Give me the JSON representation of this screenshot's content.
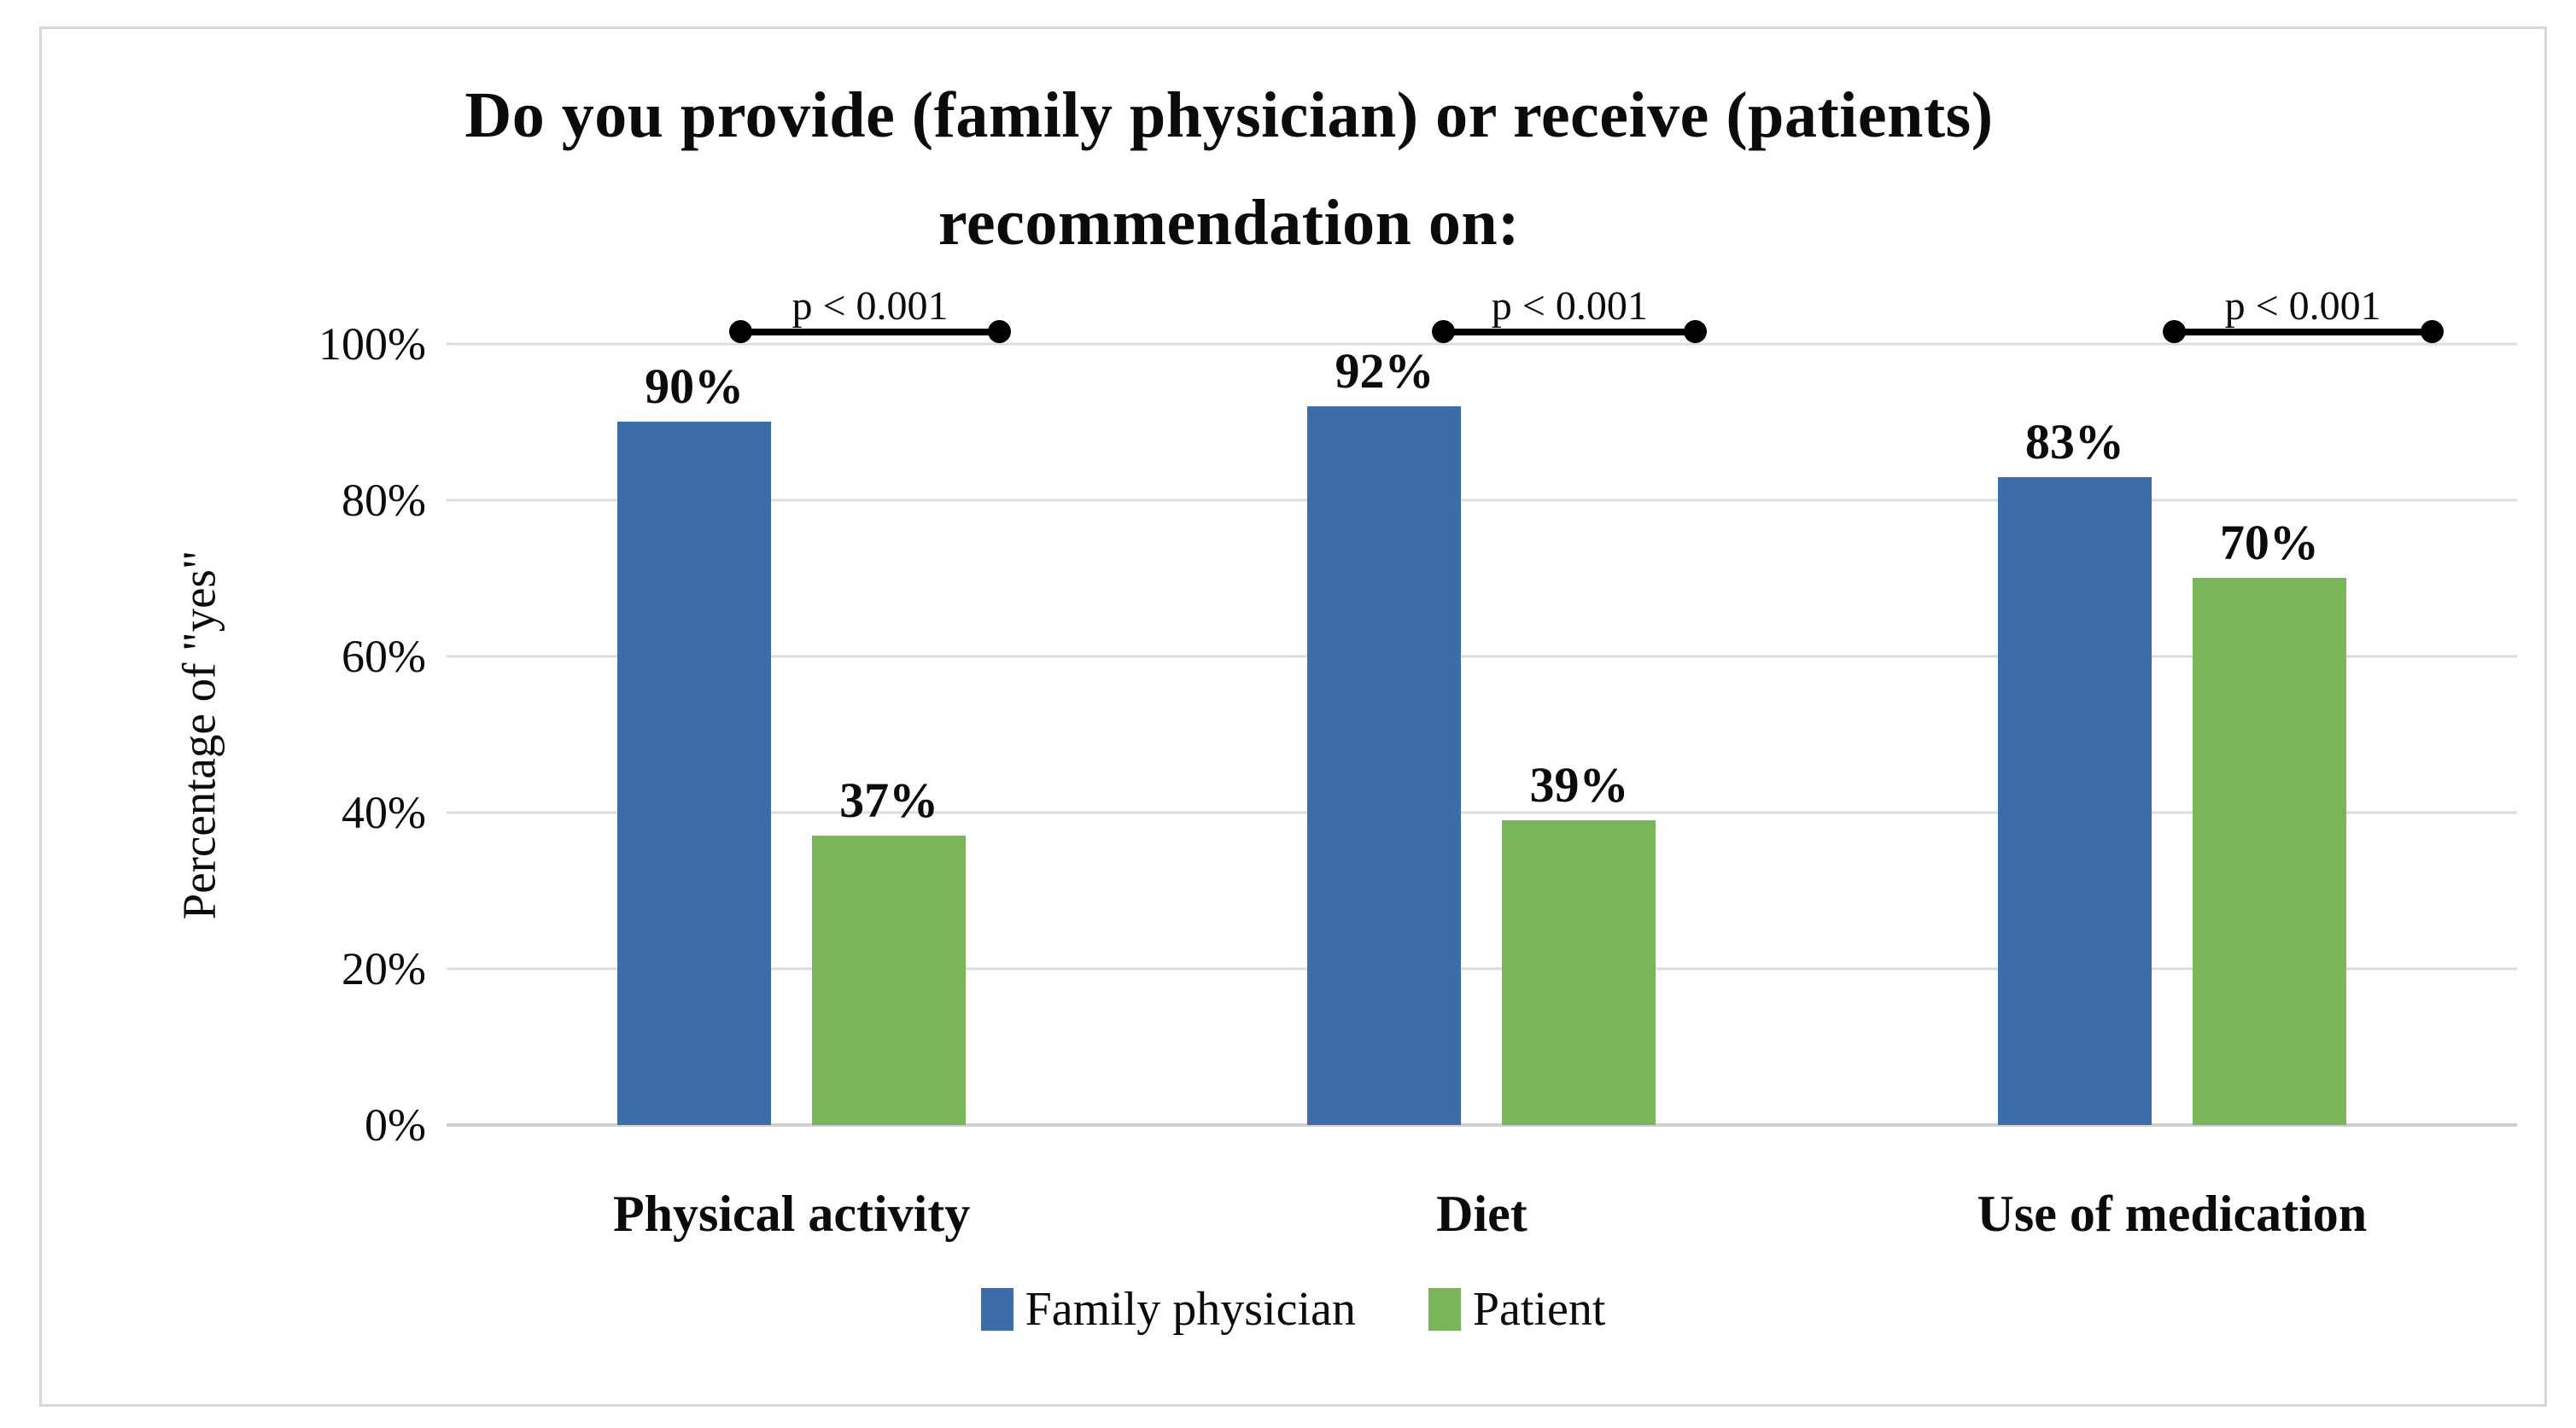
{
  "chart_data": {
    "type": "bar",
    "title_line1": "Do you provide (family physician) or receive (patients)",
    "title_line2": "recommendation on:",
    "ylabel": "Percentage of \"yes\"",
    "xlabel": "",
    "y_axis": {
      "ticks": [
        "100%",
        "80%",
        "60%",
        "40%",
        "20%",
        "0%"
      ],
      "range": [
        0,
        100
      ],
      "grid": true
    },
    "categories": [
      "Physical activity",
      "Diet",
      "Use of medication"
    ],
    "series": [
      {
        "name": "Family physician",
        "color": "#3d6cab",
        "values": [
          90,
          92,
          83
        ],
        "labels": [
          "90%",
          "92%",
          "83%"
        ]
      },
      {
        "name": "Patient",
        "color": "#7cb65a",
        "values": [
          37,
          39,
          70
        ],
        "labels": [
          "37%",
          "39%",
          "70%"
        ]
      }
    ],
    "annotations": [
      {
        "text": "p < 0.001"
      },
      {
        "text": "p < 0.001"
      },
      {
        "text": "p < 0.001"
      }
    ],
    "legend_position": "bottom",
    "colors": {
      "gridline": "#dcdcdc",
      "axis_line": "#cfcfcf",
      "frame_border": "#d8d8d8",
      "annotation": "#000000",
      "text": "#0b0b0b"
    }
  }
}
